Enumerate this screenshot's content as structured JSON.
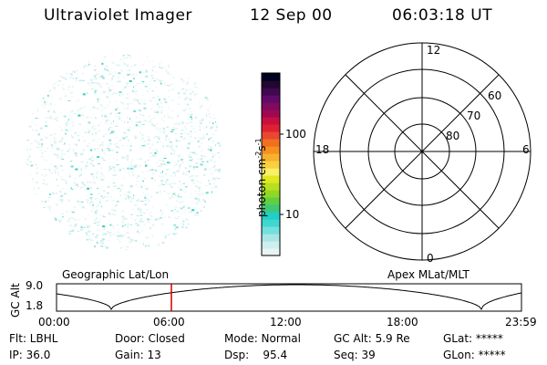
{
  "header": {
    "instrument": "Ultraviolet Imager",
    "date": "12 Sep 00",
    "time": "06:03:18 UT"
  },
  "colorbar": {
    "unit_label": "photon cm",
    "unit_exp1": "-2",
    "unit_mid": "s",
    "unit_exp2": "-1",
    "tick_100": "100",
    "tick_10": "10",
    "colors": [
      "#e8f4f2",
      "#cfeeee",
      "#a8e6e6",
      "#73e0dc",
      "#3fd8d0",
      "#20d0c8",
      "#40c878",
      "#60d040",
      "#90d828",
      "#b8e020",
      "#e0e820",
      "#f8f068",
      "#f8d040",
      "#f8b030",
      "#f89020",
      "#f07020",
      "#e84830",
      "#e02030",
      "#c81040",
      "#a00850",
      "#800a60",
      "#600a68",
      "#400850",
      "#200830",
      "#000020"
    ]
  },
  "polar": {
    "mlt_labels": {
      "top": "12",
      "bottom": "0",
      "left": "18",
      "right": "6"
    },
    "lat_labels": [
      "60",
      "70",
      "80"
    ]
  },
  "timeline": {
    "gc_alt_label": "GC Alt",
    "y_max": "9.0",
    "y_min": "1.8",
    "left_title": "Geographic Lat/Lon",
    "right_title": "Apex MLat/MLT",
    "x_ticks": [
      "00:00",
      "06:00",
      "12:00",
      "18:00",
      "23:59"
    ],
    "marker_color": "#cc0000"
  },
  "info": {
    "flt": "Flt: LBHL",
    "ip": "IP: 36.0",
    "door": "Door: Closed",
    "gain": "Gain: 13",
    "mode": "Mode: Normal",
    "dsp": "Dsp:    95.4",
    "gcalt": "GC Alt: 5.9 Re",
    "seq": "Seq: 39",
    "glat": "GLat: *****",
    "glon": "GLon: *****"
  }
}
